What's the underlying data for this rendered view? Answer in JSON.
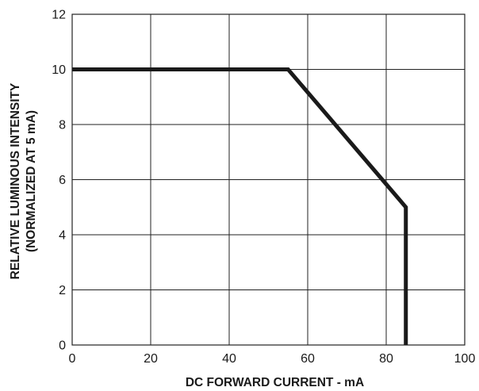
{
  "chart_data": {
    "type": "line",
    "title": "",
    "xlabel": "DC FORWARD CURRENT - mA",
    "ylabel_lines": [
      "RELATIVE LUMINOUS INTENSITY",
      "(NORMALIZED AT 5 mA)"
    ],
    "xlim": [
      0,
      100
    ],
    "ylim": [
      0,
      12
    ],
    "xticks": [
      0,
      20,
      40,
      60,
      80,
      100
    ],
    "yticks": [
      0,
      2,
      4,
      6,
      8,
      10,
      12
    ],
    "grid": true,
    "legend": "none",
    "line_color": "#1a1a1a",
    "series": [
      {
        "x": [
          0,
          55,
          85,
          85
        ],
        "y": [
          10,
          10,
          5,
          0
        ]
      }
    ]
  }
}
